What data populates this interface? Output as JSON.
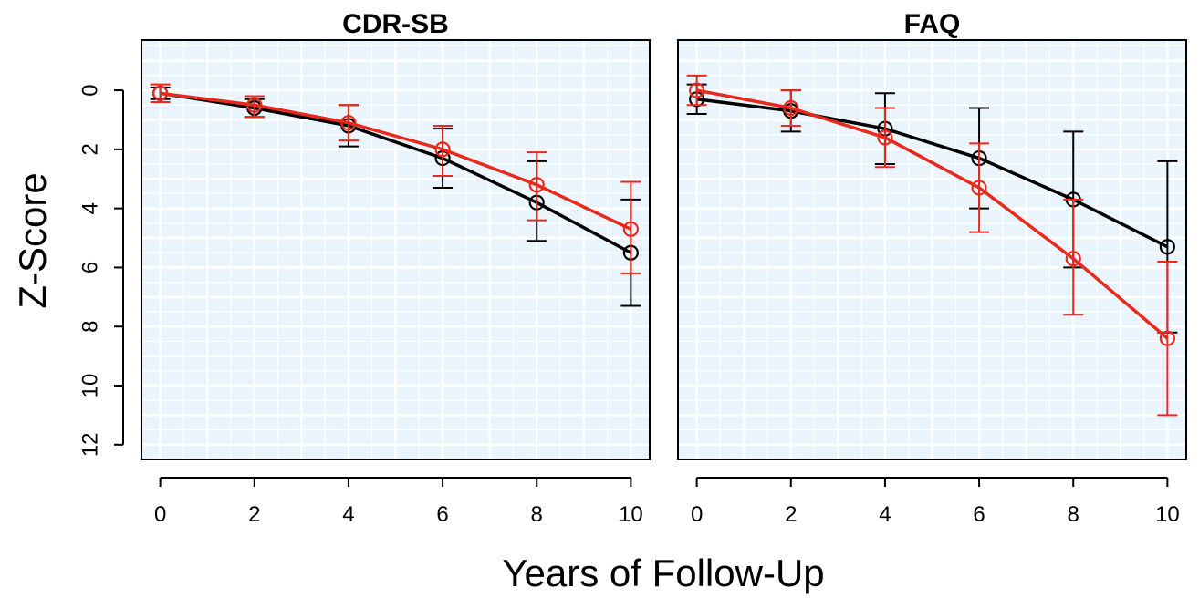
{
  "chart_data": [
    {
      "type": "line",
      "title": "CDR-SB",
      "x": [
        0,
        2,
        4,
        6,
        8,
        10
      ],
      "xlim": [
        -0.4,
        10.4
      ],
      "ylim": [
        12.5,
        -1.7
      ],
      "y_reversed": true,
      "xticks": [
        0,
        2,
        4,
        6,
        8,
        10
      ],
      "yticks": [
        0,
        2,
        4,
        6,
        8,
        10,
        12
      ],
      "grid": true,
      "series": [
        {
          "color": "#000000",
          "values": [
            0.1,
            0.6,
            1.2,
            2.3,
            3.8,
            5.5
          ],
          "err_low": [
            -0.1,
            0.3,
            0.5,
            1.3,
            2.4,
            3.7
          ],
          "err_high": [
            0.3,
            0.9,
            1.9,
            3.3,
            5.1,
            7.3
          ]
        },
        {
          "color": "#e8291c",
          "values": [
            0.1,
            0.5,
            1.1,
            2.0,
            3.2,
            4.7
          ],
          "err_low": [
            -0.2,
            0.2,
            0.5,
            1.2,
            2.1,
            3.1
          ],
          "err_high": [
            0.4,
            0.9,
            1.7,
            2.9,
            4.4,
            6.2
          ]
        }
      ]
    },
    {
      "type": "line",
      "title": "FAQ",
      "x": [
        0,
        2,
        4,
        6,
        8,
        10
      ],
      "xlim": [
        -0.4,
        10.4
      ],
      "ylim": [
        12.5,
        -1.7
      ],
      "y_reversed": true,
      "xticks": [
        0,
        2,
        4,
        6,
        8,
        10
      ],
      "yticks": [
        0,
        2,
        4,
        6,
        8,
        10,
        12
      ],
      "grid": true,
      "series": [
        {
          "color": "#000000",
          "values": [
            0.3,
            0.7,
            1.3,
            2.3,
            3.7,
            5.3
          ],
          "err_low": [
            -0.2,
            0.0,
            0.1,
            0.6,
            1.4,
            2.4
          ],
          "err_high": [
            0.8,
            1.4,
            2.5,
            4.0,
            6.0,
            8.2
          ]
        },
        {
          "color": "#e8291c",
          "values": [
            0.0,
            0.6,
            1.6,
            3.3,
            5.7,
            8.4
          ],
          "err_low": [
            -0.5,
            0.0,
            0.6,
            1.8,
            3.7,
            5.8
          ],
          "err_high": [
            0.5,
            1.2,
            2.6,
            4.8,
            7.6,
            11.0
          ]
        }
      ]
    }
  ],
  "xlabel": "Years of Follow-Up",
  "ylabel": "Z-Score",
  "colors": {
    "plot_bg": "#eaf4fd",
    "grid": "#ffffff",
    "frame": "#000000"
  }
}
